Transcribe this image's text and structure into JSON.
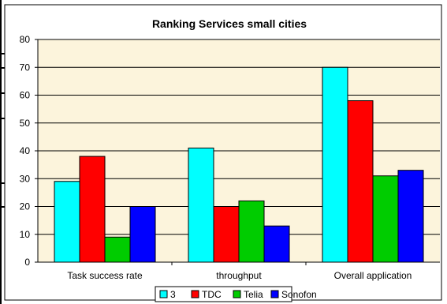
{
  "chart_data": {
    "type": "bar",
    "title": "Ranking Services small cities",
    "categories": [
      "Task success rate",
      "throughput",
      "Overall application"
    ],
    "series": [
      {
        "name": "3",
        "color": "#00ffff",
        "values": [
          29,
          41,
          70
        ]
      },
      {
        "name": "TDC",
        "color": "#ff0000",
        "values": [
          38,
          20,
          58
        ]
      },
      {
        "name": "Telia",
        "color": "#00cc00",
        "values": [
          9,
          22,
          31
        ]
      },
      {
        "name": "Sonofon",
        "color": "#0000ff",
        "values": [
          20,
          13,
          33
        ]
      }
    ],
    "ylim": [
      0,
      80
    ],
    "yticks": [
      0,
      10,
      20,
      30,
      40,
      50,
      60,
      70,
      80
    ],
    "grid": true,
    "legend": "bottom",
    "plot_background": "#fcf4dc"
  }
}
